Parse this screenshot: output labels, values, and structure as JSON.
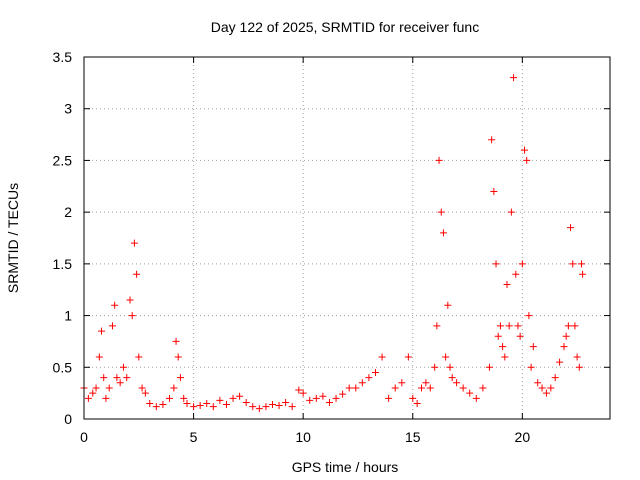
{
  "chart_data": {
    "type": "scatter",
    "title": "Day 122 of 2025, SRMTID for receiver func",
    "xlabel": "GPS time / hours",
    "ylabel": "SRMTID / TECUs",
    "xlim": [
      0,
      24
    ],
    "ylim": [
      0,
      3.5
    ],
    "xticks": [
      0,
      5,
      10,
      15,
      20
    ],
    "yticks": [
      0,
      0.5,
      1,
      1.5,
      2,
      2.5,
      3,
      3.5
    ],
    "xtick_labels": [
      "0",
      "5",
      "10",
      "15",
      "20"
    ],
    "ytick_labels": [
      "0",
      "0.5",
      "1",
      "1.5",
      "2",
      "2.5",
      "3",
      "3.5"
    ],
    "grid": true,
    "marker": "+",
    "color": "#ff0000",
    "series": [
      {
        "name": "SRMTID",
        "x": [
          0.0,
          0.2,
          0.4,
          0.55,
          0.7,
          0.8,
          0.9,
          1.0,
          1.15,
          1.3,
          1.4,
          1.5,
          1.65,
          1.8,
          1.95,
          2.1,
          2.2,
          2.3,
          2.4,
          2.5,
          2.65,
          2.8,
          3.0,
          3.3,
          3.6,
          3.9,
          4.1,
          4.2,
          4.3,
          4.4,
          4.55,
          4.7,
          5.0,
          5.3,
          5.6,
          5.9,
          6.2,
          6.5,
          6.8,
          7.1,
          7.4,
          7.7,
          8.0,
          8.3,
          8.6,
          8.9,
          9.2,
          9.5,
          9.8,
          10.0,
          10.3,
          10.6,
          10.9,
          11.2,
          11.5,
          11.8,
          12.1,
          12.4,
          12.7,
          13.0,
          13.3,
          13.6,
          13.9,
          14.2,
          14.5,
          14.8,
          15.0,
          15.2,
          15.4,
          15.6,
          15.8,
          16.0,
          16.1,
          16.2,
          16.3,
          16.4,
          16.5,
          16.6,
          16.7,
          16.8,
          17.0,
          17.3,
          17.6,
          17.9,
          18.2,
          18.5,
          18.6,
          18.7,
          18.8,
          18.9,
          19.0,
          19.1,
          19.2,
          19.3,
          19.4,
          19.5,
          19.6,
          19.7,
          19.8,
          19.9,
          20.0,
          20.1,
          20.2,
          20.3,
          20.4,
          20.5,
          20.7,
          20.9,
          21.1,
          21.3,
          21.5,
          21.7,
          21.9,
          22.0,
          22.1,
          22.2,
          22.3,
          22.4,
          22.5,
          22.6,
          22.7,
          22.75
        ],
        "values": [
          0.3,
          0.2,
          0.25,
          0.3,
          0.6,
          0.85,
          0.4,
          0.2,
          0.3,
          0.9,
          1.1,
          0.4,
          0.35,
          0.5,
          0.4,
          1.15,
          1.0,
          1.7,
          1.4,
          0.6,
          0.3,
          0.25,
          0.15,
          0.12,
          0.14,
          0.2,
          0.3,
          0.75,
          0.6,
          0.4,
          0.2,
          0.15,
          0.12,
          0.13,
          0.15,
          0.12,
          0.18,
          0.14,
          0.2,
          0.22,
          0.16,
          0.12,
          0.1,
          0.12,
          0.14,
          0.13,
          0.16,
          0.12,
          0.28,
          0.25,
          0.18,
          0.2,
          0.22,
          0.16,
          0.2,
          0.24,
          0.3,
          0.3,
          0.35,
          0.4,
          0.45,
          0.6,
          0.2,
          0.3,
          0.35,
          0.6,
          0.2,
          0.15,
          0.3,
          0.35,
          0.3,
          0.5,
          0.9,
          2.5,
          2.0,
          1.8,
          0.6,
          1.1,
          0.5,
          0.4,
          0.35,
          0.3,
          0.25,
          0.2,
          0.3,
          0.5,
          2.7,
          2.2,
          1.5,
          0.8,
          0.9,
          0.7,
          0.6,
          1.3,
          0.9,
          2.0,
          3.3,
          1.4,
          0.9,
          0.8,
          1.5,
          2.6,
          2.5,
          1.0,
          0.5,
          0.7,
          0.35,
          0.3,
          0.25,
          0.3,
          0.4,
          0.55,
          0.7,
          0.8,
          0.9,
          1.85,
          1.5,
          0.9,
          0.6,
          0.5,
          1.5,
          1.4
        ]
      }
    ]
  }
}
